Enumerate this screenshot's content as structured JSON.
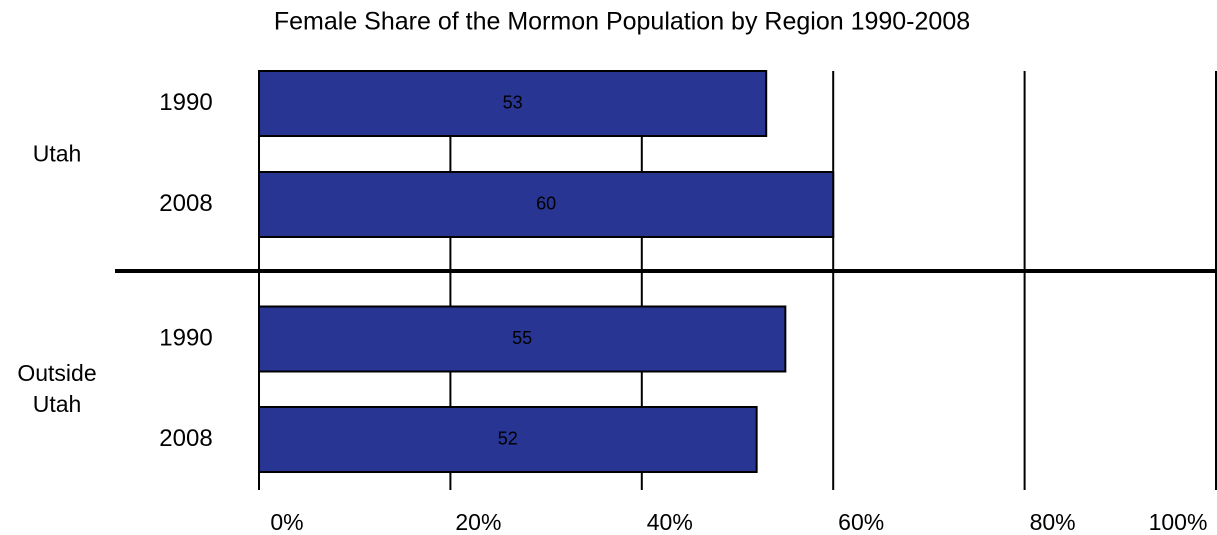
{
  "chart_data": {
    "type": "grouped_bar_horizontal",
    "title": "Female Share of the Mormon Population by Region 1990-2008",
    "groups": [
      {
        "name": "Utah",
        "categories": [
          "1990",
          "2008"
        ],
        "values": [
          53,
          60
        ]
      },
      {
        "name": "Outside Utah",
        "categories": [
          "1990",
          "2008"
        ],
        "values": [
          55,
          52
        ]
      }
    ],
    "color": "#283593",
    "xlim": [
      0,
      100
    ],
    "xticks": [
      {
        "value": 0,
        "label": "0%"
      },
      {
        "value": 20,
        "label": "20%"
      },
      {
        "value": 40,
        "label": "40%"
      },
      {
        "value": 60,
        "label": "60%"
      },
      {
        "value": 80,
        "label": "80%"
      },
      {
        "value": 100,
        "label": "100%"
      }
    ],
    "grid": true
  }
}
